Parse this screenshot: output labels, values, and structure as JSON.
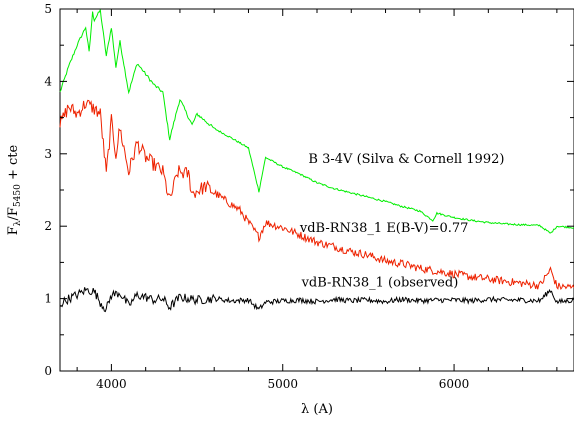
{
  "chart_data": {
    "type": "line",
    "xlabel": "λ (A)",
    "ylabel_main": "F",
    "ylabel_sub1": "λ",
    "ylabel_mid": "/F",
    "ylabel_sub2": "5450",
    "ylabel_tail": " + cte",
    "xlim": [
      3700,
      6700
    ],
    "ylim": [
      0,
      5
    ],
    "xticks": [
      4000,
      5000,
      6000
    ],
    "yticks": [
      0,
      1,
      2,
      3,
      4,
      5
    ],
    "grid": false,
    "annotations": [
      {
        "text": "B 3-4V (Silva & Cornell 1992)",
        "x": 5150,
        "y": 2.87
      },
      {
        "text": "vdB-RN38_1  E(B-V)=0.77",
        "x": 5100,
        "y": 1.92
      },
      {
        "text": "vdB-RN38_1 (observed)",
        "x": 5110,
        "y": 1.17
      }
    ],
    "series": [
      {
        "label_ref": "B 3-4V (Silva & Cornell 1992)",
        "color": "#00ee00",
        "x": [
          3700,
          3750,
          3800,
          3850,
          3870,
          3890,
          3900,
          3935,
          3970,
          4000,
          4026,
          4050,
          4101,
          4150,
          4200,
          4250,
          4300,
          4340,
          4388,
          4400,
          4471,
          4500,
          4600,
          4700,
          4800,
          4861,
          4900,
          5000,
          5100,
          5200,
          5300,
          5400,
          5500,
          5600,
          5700,
          5800,
          5876,
          5900,
          6000,
          6100,
          6200,
          6300,
          6400,
          6500,
          6563,
          6600,
          6700
        ],
        "y": [
          3.85,
          4.2,
          4.5,
          4.75,
          4.4,
          4.95,
          4.85,
          4.98,
          4.35,
          4.75,
          4.2,
          4.55,
          3.85,
          4.25,
          4.1,
          3.95,
          3.85,
          3.2,
          3.65,
          3.75,
          3.4,
          3.55,
          3.35,
          3.22,
          3.08,
          2.48,
          2.95,
          2.82,
          2.72,
          2.6,
          2.52,
          2.46,
          2.4,
          2.34,
          2.27,
          2.21,
          2.08,
          2.18,
          2.12,
          2.08,
          2.05,
          2.03,
          2.02,
          2.01,
          1.9,
          2.0,
          1.98
        ]
      },
      {
        "label_ref": "vdB-RN38_1  E(B-V)=0.77",
        "color": "#ee2200",
        "x": [
          3700,
          3750,
          3800,
          3850,
          3900,
          3935,
          3970,
          4000,
          4026,
          4050,
          4101,
          4150,
          4200,
          4250,
          4300,
          4340,
          4388,
          4450,
          4471,
          4550,
          4650,
          4750,
          4861,
          4900,
          5000,
          5100,
          5200,
          5300,
          5400,
          5500,
          5600,
          5700,
          5800,
          5900,
          6000,
          6100,
          6200,
          6300,
          6400,
          6500,
          6563,
          6600,
          6700
        ],
        "y": [
          3.4,
          3.65,
          3.55,
          3.7,
          3.62,
          3.55,
          2.72,
          3.45,
          3.0,
          3.35,
          2.75,
          3.15,
          2.95,
          2.85,
          2.75,
          2.35,
          2.75,
          2.72,
          2.45,
          2.55,
          2.38,
          2.22,
          1.85,
          2.05,
          1.98,
          1.88,
          1.78,
          1.72,
          1.65,
          1.6,
          1.52,
          1.48,
          1.42,
          1.38,
          1.34,
          1.3,
          1.27,
          1.24,
          1.21,
          1.18,
          1.4,
          1.17,
          1.15
        ]
      },
      {
        "label_ref": "vdB-RN38_1 (observed)",
        "color": "#000000",
        "x": [
          3700,
          3750,
          3800,
          3850,
          3900,
          3935,
          3970,
          4000,
          4050,
          4101,
          4150,
          4200,
          4250,
          4300,
          4340,
          4400,
          4500,
          4600,
          4700,
          4800,
          4861,
          4900,
          5000,
          5100,
          5200,
          5300,
          5400,
          5500,
          5600,
          5700,
          5800,
          5900,
          6000,
          6100,
          6200,
          6300,
          6400,
          6500,
          6563,
          6600,
          6700
        ],
        "y": [
          0.92,
          1.0,
          1.05,
          1.12,
          1.1,
          0.95,
          0.85,
          1.05,
          1.08,
          0.9,
          1.05,
          1.02,
          0.98,
          1.0,
          0.88,
          1.02,
          0.98,
          1.0,
          0.97,
          0.98,
          0.85,
          0.95,
          0.97,
          0.98,
          0.96,
          0.99,
          0.97,
          0.98,
          0.96,
          0.99,
          0.97,
          0.98,
          0.98,
          0.97,
          0.99,
          0.98,
          0.98,
          0.97,
          1.12,
          0.95,
          0.98
        ]
      }
    ]
  }
}
